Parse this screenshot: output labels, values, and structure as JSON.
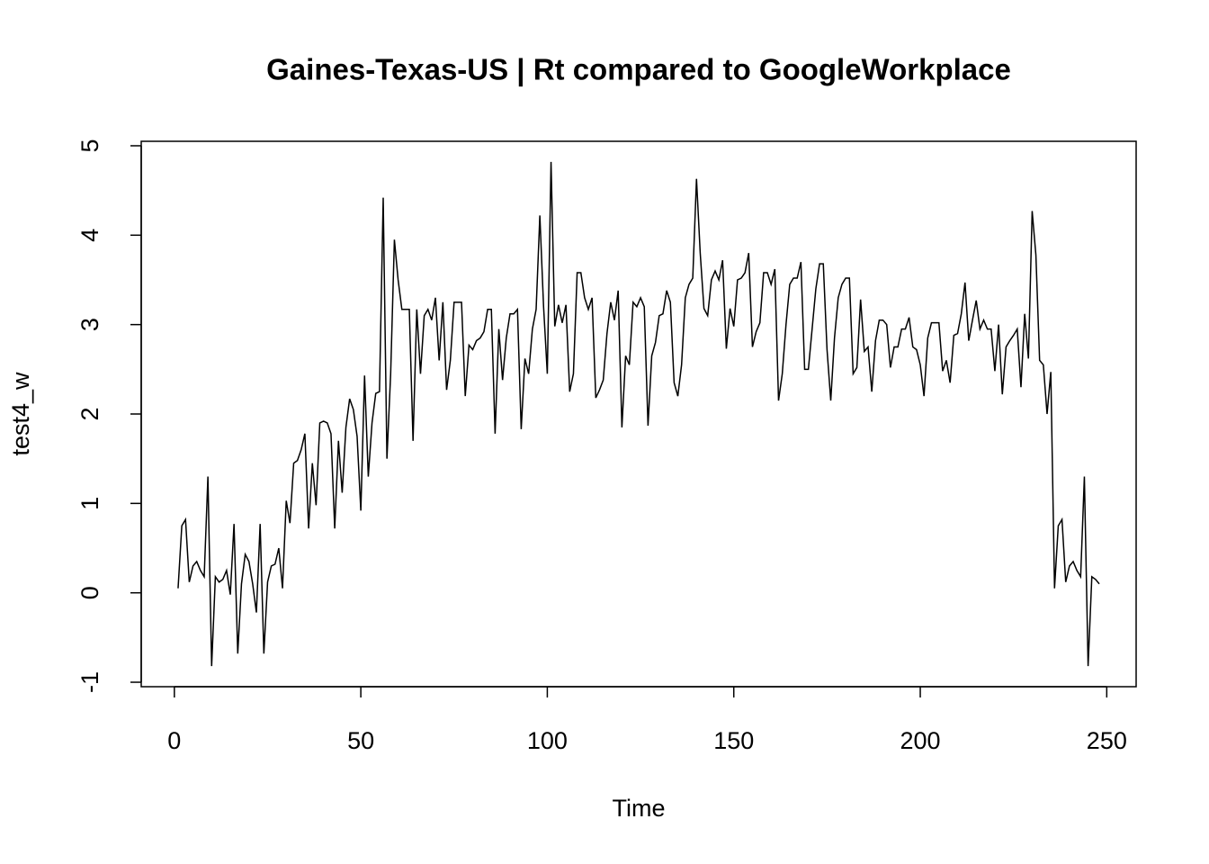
{
  "chart_data": {
    "type": "line",
    "title": "Gaines-Texas-US | Rt compared to GoogleWorkplace",
    "xlabel": "Time",
    "ylabel": "test4_w",
    "x": [
      1,
      2,
      3,
      4,
      5,
      6,
      7,
      8,
      9,
      10,
      11,
      12,
      13,
      14,
      15,
      16,
      17,
      18,
      19,
      20,
      21,
      22,
      23,
      24,
      25,
      26,
      27,
      28,
      29,
      30,
      31,
      32,
      33,
      34,
      35,
      36,
      37,
      38,
      39,
      40,
      41,
      42,
      43,
      44,
      45,
      46,
      47,
      48,
      49,
      50,
      51,
      52,
      53,
      54,
      55,
      56,
      57,
      58,
      59,
      60,
      61,
      62,
      63,
      64,
      65,
      66,
      67,
      68,
      69,
      70,
      71,
      72,
      73,
      74,
      75,
      76,
      77,
      78,
      79,
      80,
      81,
      82,
      83,
      84,
      85,
      86,
      87,
      88,
      89,
      90,
      91,
      92,
      93,
      94,
      95,
      96,
      97,
      98,
      99,
      100,
      101,
      102,
      103,
      104,
      105,
      106,
      107,
      108,
      109,
      110,
      111,
      112,
      113,
      114,
      115,
      116,
      117,
      118,
      119,
      120,
      121,
      122,
      123,
      124,
      125,
      126,
      127,
      128,
      129,
      130,
      131,
      132,
      133,
      134,
      135,
      136,
      137,
      138,
      139,
      140,
      141,
      142,
      143,
      144,
      145,
      146,
      147,
      148,
      149,
      150,
      151,
      152,
      153,
      154,
      155,
      156,
      157,
      158,
      159,
      160,
      161,
      162,
      163,
      164,
      165,
      166,
      167,
      168,
      169,
      170,
      171,
      172,
      173,
      174,
      175,
      176,
      177,
      178,
      179,
      180,
      181,
      182,
      183,
      184,
      185,
      186,
      187,
      188,
      189,
      190,
      191,
      192,
      193,
      194,
      195,
      196,
      197,
      198,
      199,
      200,
      201,
      202,
      203,
      204,
      205,
      206,
      207,
      208,
      209,
      210,
      211,
      212,
      213,
      214,
      215,
      216,
      217,
      218,
      219,
      220,
      221,
      222,
      223,
      224,
      225,
      226,
      227,
      228,
      229,
      230,
      231,
      232,
      233,
      234,
      235,
      236,
      237,
      238,
      239,
      240,
      241,
      242,
      243,
      244,
      245,
      246,
      247,
      248
    ],
    "series": [
      {
        "color": "#000000",
        "values": [
          0.05,
          0.75,
          0.82,
          0.12,
          0.3,
          0.35,
          0.25,
          0.18,
          1.3,
          -0.82,
          0.18,
          0.12,
          0.15,
          0.25,
          -0.02,
          0.77,
          -0.68,
          0.1,
          0.43,
          0.35,
          0.1,
          -0.22,
          0.77,
          -0.68,
          0.12,
          0.3,
          0.32,
          0.5,
          0.05,
          1.03,
          0.78,
          1.45,
          1.48,
          1.6,
          1.78,
          0.72,
          1.45,
          0.98,
          1.9,
          1.92,
          1.9,
          1.78,
          0.72,
          1.7,
          1.12,
          1.85,
          2.17,
          2.05,
          1.75,
          0.92,
          2.43,
          1.3,
          1.9,
          2.23,
          2.25,
          4.42,
          1.5,
          2.45,
          3.95,
          3.5,
          3.17,
          3.17,
          3.17,
          1.7,
          3.17,
          2.45,
          3.1,
          3.17,
          3.05,
          3.3,
          2.6,
          3.25,
          2.27,
          2.6,
          3.25,
          3.25,
          3.25,
          2.2,
          2.77,
          2.72,
          2.82,
          2.85,
          2.92,
          3.17,
          3.17,
          1.78,
          2.95,
          2.38,
          2.85,
          3.12,
          3.12,
          3.17,
          1.83,
          2.62,
          2.45,
          2.95,
          3.17,
          4.22,
          3.2,
          2.45,
          4.82,
          2.98,
          3.22,
          3.02,
          3.22,
          2.25,
          2.45,
          3.58,
          3.58,
          3.3,
          3.17,
          3.3,
          2.18,
          2.27,
          2.38,
          2.9,
          3.25,
          3.05,
          3.38,
          1.85,
          2.65,
          2.55,
          3.25,
          3.2,
          3.3,
          3.2,
          1.87,
          2.65,
          2.8,
          3.1,
          3.12,
          3.38,
          3.25,
          2.35,
          2.2,
          2.55,
          3.3,
          3.45,
          3.52,
          4.63,
          3.8,
          3.18,
          3.1,
          3.5,
          3.6,
          3.5,
          3.72,
          2.73,
          3.18,
          2.98,
          3.5,
          3.52,
          3.58,
          3.8,
          2.75,
          2.92,
          3.02,
          3.58,
          3.58,
          3.45,
          3.62,
          2.15,
          2.45,
          3.0,
          3.45,
          3.52,
          3.52,
          3.7,
          2.5,
          2.5,
          2.95,
          3.4,
          3.68,
          3.68,
          2.72,
          2.15,
          2.85,
          3.3,
          3.45,
          3.52,
          3.52,
          2.45,
          2.52,
          3.28,
          2.7,
          2.75,
          2.25,
          2.82,
          3.05,
          3.05,
          3.0,
          2.52,
          2.75,
          2.75,
          2.95,
          2.95,
          3.08,
          2.75,
          2.72,
          2.55,
          2.2,
          2.85,
          3.02,
          3.02,
          3.02,
          2.48,
          2.6,
          2.35,
          2.88,
          2.9,
          3.12,
          3.47,
          2.82,
          3.05,
          3.27,
          2.95,
          3.05,
          2.95,
          2.95,
          2.48,
          3.0,
          2.22,
          2.75,
          2.82,
          2.88,
          2.95,
          2.3,
          3.12,
          2.62,
          4.27,
          3.78,
          2.6,
          2.55,
          2.0,
          2.47,
          0.05,
          0.75,
          0.82,
          0.12,
          0.3,
          0.35,
          0.25,
          0.18,
          1.3,
          -0.82,
          0.18,
          0.15,
          0.1
        ]
      }
    ],
    "xlim": [
      -8.88,
      257.88
    ],
    "xticks": [
      0,
      50,
      100,
      150,
      200,
      250
    ],
    "ylim": [
      -1.05,
      5.05
    ],
    "yticks": [
      -1,
      0,
      1,
      2,
      3,
      4,
      5
    ]
  }
}
